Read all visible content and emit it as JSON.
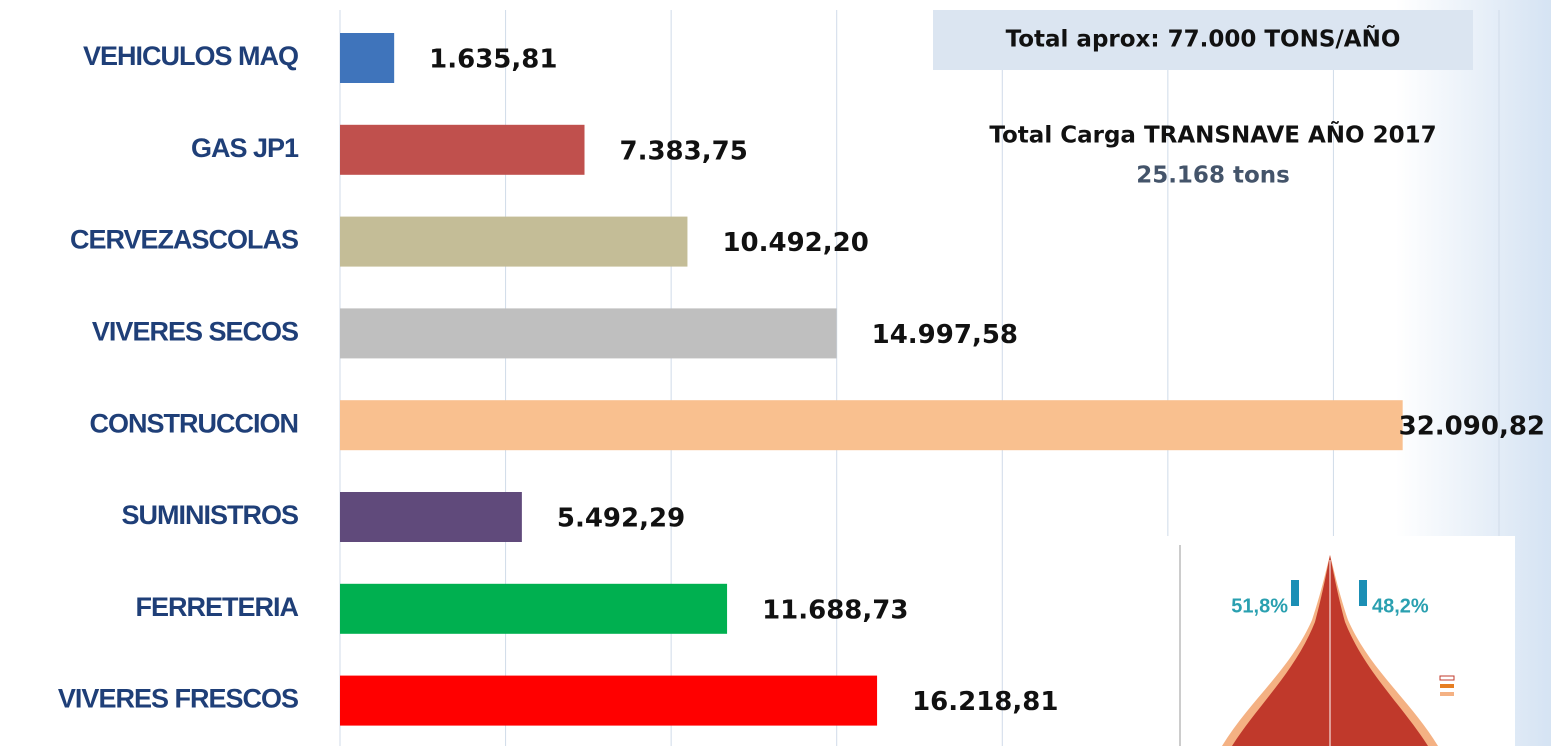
{
  "chart_data": {
    "type": "bar",
    "orientation": "horizontal",
    "categories": [
      "VEHICULOS  MAQ",
      "GAS JP1",
      "CERVEZASCOLAS",
      "VIVERES SECOS",
      "CONSTRUCCION",
      "SUMINISTROS",
      "FERRETERIA",
      "VIVERES FRESCOS"
    ],
    "values": [
      1635.81,
      7383.75,
      10492.2,
      14997.58,
      32090.82,
      5492.29,
      11688.73,
      16218.81
    ],
    "value_labels": [
      "1.635,81",
      "7.383,75",
      "10.492,20",
      "14.997,58",
      "32.090,82",
      "5.492,29",
      "11.688,73",
      "16.218,81"
    ],
    "colors": [
      "#3f74bb",
      "#c0504d",
      "#c4bd97",
      "#bfbfbf",
      "#f9c08f",
      "#604a7b",
      "#00b050",
      "#ff0000"
    ],
    "xlim": [
      0,
      35000
    ],
    "xticks": [
      0,
      5000,
      10000,
      15000,
      20000,
      25000,
      30000,
      35000
    ],
    "grid": true,
    "annotations": [
      "Total aprox: 77.000 TONS/AÑO",
      "Total Carga TRANSNAVE AÑO 2017",
      "25.168 tons"
    ],
    "inset_labels": [
      "51,8%",
      "48,2%"
    ]
  }
}
